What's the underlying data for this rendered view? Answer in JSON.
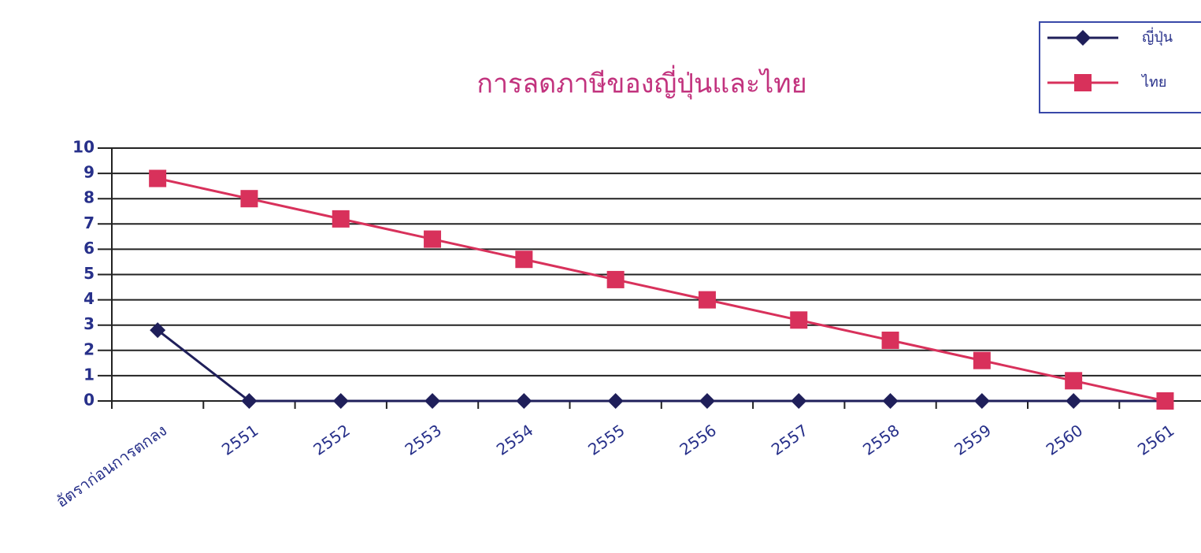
{
  "chart_data": {
    "type": "line",
    "title": "การลดภาษีของญี่ปุ่นและไทย",
    "categories": [
      "อัตราก่อนการตกลง",
      "2551",
      "2552",
      "2553",
      "2554",
      "2555",
      "2556",
      "2557",
      "2558",
      "2559",
      "2560",
      "2561"
    ],
    "series": [
      {
        "name": "ญี่ปุ่น",
        "color": "#1f1f5a",
        "marker": "diamond",
        "values": [
          2.8,
          0,
          0,
          0,
          0,
          0,
          0,
          0,
          0,
          0,
          0,
          0
        ]
      },
      {
        "name": "ไทย",
        "color": "#d8315b",
        "marker": "square",
        "values": [
          8.8,
          8.0,
          7.2,
          6.4,
          5.6,
          4.8,
          4.0,
          3.2,
          2.4,
          1.6,
          0.8,
          0
        ]
      }
    ],
    "ylim": [
      0,
      10
    ],
    "yticks": [
      0,
      1,
      2,
      3,
      4,
      5,
      6,
      7,
      8,
      9,
      10
    ],
    "grid": true,
    "legend": "top-right"
  }
}
